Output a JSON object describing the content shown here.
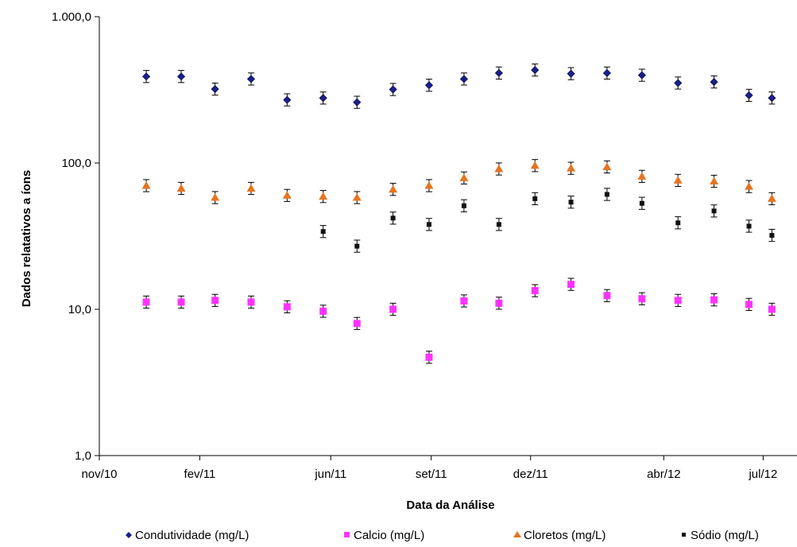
{
  "chart_data": {
    "type": "scatter",
    "xlabel": "Data da Análise",
    "ylabel": "Dados relatativos a íons",
    "y_scale": "log",
    "ylim": [
      1,
      1000
    ],
    "y_tick_labels": [
      "1,0",
      "10,0",
      "100,0",
      "1.000,0"
    ],
    "xlim": [
      "2010-11-01",
      "2012-08-01"
    ],
    "x_tick_labels": [
      "nov/10",
      "fev/11",
      "jun/11",
      "set/11",
      "dez/11",
      "abr/12",
      "jul/12"
    ],
    "x_tick_dates": [
      "2010-11-01",
      "2011-02-01",
      "2011-06-01",
      "2011-09-01",
      "2011-12-01",
      "2012-04-01",
      "2012-07-01"
    ],
    "grid": false,
    "error_bars": true,
    "legend_position": "bottom",
    "series": [
      {
        "name": "Condutividade (mg/L)",
        "marker": "diamond",
        "color": "#1a1f8c",
        "x": [
          "2010-12-14",
          "2011-01-15",
          "2011-02-15",
          "2011-03-20",
          "2011-04-22",
          "2011-05-25",
          "2011-06-25",
          "2011-07-28",
          "2011-08-30",
          "2011-10-01",
          "2011-11-02",
          "2011-12-05",
          "2012-01-07",
          "2012-02-09",
          "2012-03-12",
          "2012-04-14",
          "2012-05-17",
          "2012-06-18",
          "2012-07-09"
        ],
        "y": [
          390,
          390,
          320,
          375,
          270,
          278,
          260,
          318,
          340,
          375,
          412,
          432,
          408,
          412,
          398,
          352,
          358,
          290,
          278
        ]
      },
      {
        "name": "Calcio (mg/L)",
        "marker": "square",
        "color": "#ff33ff",
        "x": [
          "2010-12-14",
          "2011-01-15",
          "2011-02-15",
          "2011-03-20",
          "2011-04-22",
          "2011-05-25",
          "2011-06-25",
          "2011-07-28",
          "2011-08-30",
          "2011-10-01",
          "2011-11-02",
          "2011-12-05",
          "2012-01-07",
          "2012-02-09",
          "2012-03-12",
          "2012-04-14",
          "2012-05-17",
          "2012-06-18",
          "2012-07-09"
        ],
        "y": [
          11.2,
          11.2,
          11.5,
          11.2,
          10.4,
          9.7,
          8.0,
          10.0,
          4.7,
          11.4,
          11.0,
          13.4,
          14.8,
          12.4,
          11.8,
          11.5,
          11.6,
          10.8,
          10.0
        ]
      },
      {
        "name": "Cloretos (mg/L)",
        "marker": "triangle",
        "color": "#e6741f",
        "x": [
          "2010-12-14",
          "2011-01-15",
          "2011-02-15",
          "2011-03-20",
          "2011-04-22",
          "2011-05-25",
          "2011-06-25",
          "2011-07-28",
          "2011-08-30",
          "2011-10-01",
          "2011-11-02",
          "2011-12-05",
          "2012-01-07",
          "2012-02-09",
          "2012-03-12",
          "2012-04-14",
          "2012-05-17",
          "2012-06-18",
          "2012-07-09"
        ],
        "y": [
          70,
          67,
          58,
          67,
          60,
          59,
          58,
          66,
          70,
          79,
          91,
          96,
          92,
          94,
          81,
          76,
          75,
          69,
          57
        ]
      },
      {
        "name": "Sódio (mg/L)",
        "marker": "square-small",
        "color": "#111111",
        "x": [
          "2011-05-25",
          "2011-06-25",
          "2011-07-28",
          "2011-08-30",
          "2011-10-01",
          "2011-11-02",
          "2011-12-05",
          "2012-01-07",
          "2012-02-09",
          "2012-03-12",
          "2012-04-14",
          "2012-05-17",
          "2012-06-18",
          "2012-07-09"
        ],
        "y": [
          34,
          27,
          42,
          38,
          51,
          38,
          57,
          54,
          61,
          53,
          39,
          47,
          37,
          32
        ]
      }
    ]
  }
}
